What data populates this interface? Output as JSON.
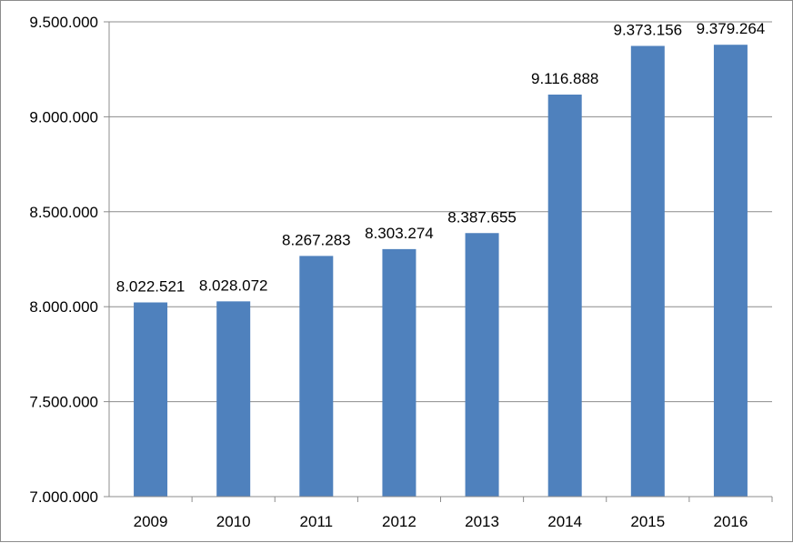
{
  "chart_data": {
    "type": "bar",
    "categories": [
      "2009",
      "2010",
      "2011",
      "2012",
      "2013",
      "2014",
      "2015",
      "2016"
    ],
    "values": [
      8022521,
      8028072,
      8267283,
      8303274,
      8387655,
      9116888,
      9373156,
      9379264
    ],
    "data_labels": [
      "8.022.521",
      "8.028.072",
      "8.267.283",
      "8.303.274",
      "8.387.655",
      "9.116.888",
      "9.373.156",
      "9.379.264"
    ],
    "y_ticks": [
      {
        "value": 7000000,
        "label": "7.000.000"
      },
      {
        "value": 7500000,
        "label": "7.500.000"
      },
      {
        "value": 8000000,
        "label": "8.000.000"
      },
      {
        "value": 8500000,
        "label": "8.500.000"
      },
      {
        "value": 9000000,
        "label": "9.000.000"
      },
      {
        "value": 9500000,
        "label": "9.500.000"
      }
    ],
    "ylim": [
      7000000,
      9500000
    ],
    "title": "",
    "xlabel": "",
    "ylabel": "",
    "grid": true,
    "legend": "none",
    "colors": {
      "bar": "#4f81bd",
      "grid": "#8c8c8c",
      "axis": "#8c8c8c"
    }
  }
}
